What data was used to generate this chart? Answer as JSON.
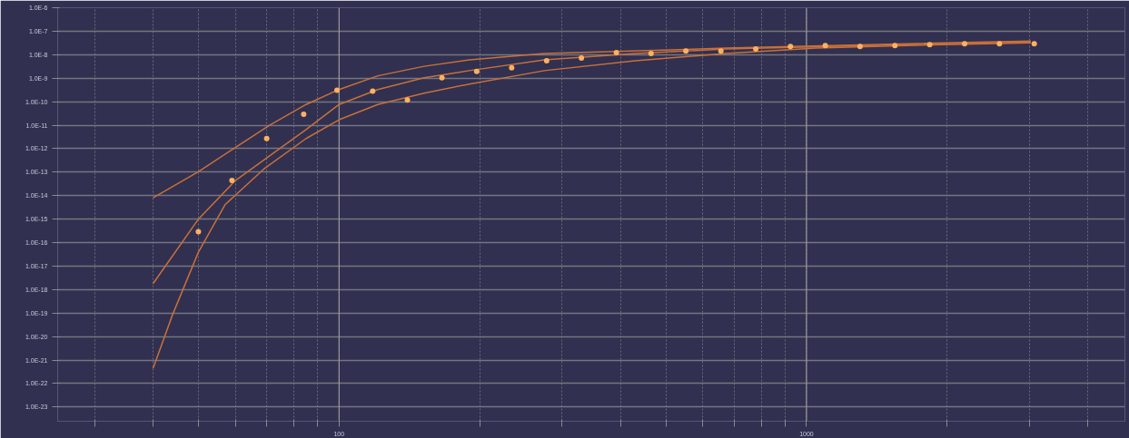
{
  "chart_data": {
    "type": "line",
    "log": "xy",
    "grid": true,
    "marker": "none",
    "xlim": [
      25,
      4800
    ],
    "ylim": [
      2.5e-24,
      1e-06
    ],
    "xticks": [
      {
        "value": 30,
        "label": null
      },
      {
        "value": 40,
        "label": null
      },
      {
        "value": 50,
        "label": null
      },
      {
        "value": 60,
        "label": null
      },
      {
        "value": 70,
        "label": null
      },
      {
        "value": 80,
        "label": null
      },
      {
        "value": 90,
        "label": null
      },
      {
        "value": 100,
        "label": "100"
      },
      {
        "value": 200,
        "label": null
      },
      {
        "value": 300,
        "label": null
      },
      {
        "value": 400,
        "label": null
      },
      {
        "value": 500,
        "label": null
      },
      {
        "value": 600,
        "label": null
      },
      {
        "value": 700,
        "label": null
      },
      {
        "value": 800,
        "label": null
      },
      {
        "value": 900,
        "label": null
      },
      {
        "value": 1000,
        "label": "1000"
      },
      {
        "value": 2000,
        "label": null
      },
      {
        "value": 3000,
        "label": null
      },
      {
        "value": 4000,
        "label": null
      }
    ],
    "yticks": [
      {
        "value": 1e-06,
        "label": "1.0E-6"
      },
      {
        "value": 1e-07,
        "label": "1.0E-7"
      },
      {
        "value": 1e-08,
        "label": "1.0E-8"
      },
      {
        "value": 1e-09,
        "label": "1.0E-9"
      },
      {
        "value": 1e-10,
        "label": "1.0E-10"
      },
      {
        "value": 1e-11,
        "label": "1.0E-11"
      },
      {
        "value": 1e-12,
        "label": "1.0E-12"
      },
      {
        "value": 1e-13,
        "label": "1.0E-13"
      },
      {
        "value": 1e-14,
        "label": "1.0E-14"
      },
      {
        "value": 1e-15,
        "label": "1.0E-15"
      },
      {
        "value": 1e-16,
        "label": "1.0E-16"
      },
      {
        "value": 1e-17,
        "label": "1.0E-17"
      },
      {
        "value": 1e-18,
        "label": "1.0E-18"
      },
      {
        "value": 1e-19,
        "label": "1.0E-19"
      },
      {
        "value": 1e-20,
        "label": "1.0E-20"
      },
      {
        "value": 1e-21,
        "label": "1.0E-21"
      },
      {
        "value": 1e-22,
        "label": "1.0E-22"
      },
      {
        "value": 1e-23,
        "label": "1.0E-23"
      }
    ],
    "series": [
      {
        "type": "scatter",
        "marker": "circle",
        "color": "#ffb060",
        "x": [
          50,
          59,
          70,
          84,
          99,
          118,
          140,
          166,
          197,
          234,
          278,
          330,
          392,
          465,
          552,
          656,
          779,
          924,
          1097,
          1302,
          1546,
          1835,
          2179,
          2587,
          3071
        ],
        "values": [
          2.95e-16,
          4.4e-14,
          2.7e-12,
          2.9e-11,
          3.1e-10,
          2.8e-10,
          1.17e-10,
          1.05e-09,
          1.95e-09,
          2.75e-09,
          5.5e-09,
          7.2e-09,
          1.23e-08,
          1.12e-08,
          1.45e-08,
          1.45e-08,
          1.74e-08,
          2.24e-08,
          2.45e-08,
          2.24e-08,
          2.45e-08,
          2.69e-08,
          2.95e-08,
          2.95e-08,
          2.95e-08
        ]
      },
      {
        "color": "#c8703a",
        "x": [
          40,
          50,
          60,
          71,
          85,
          100,
          121,
          152,
          190,
          275,
          671,
          1643,
          3020
        ],
        "values": [
          8.1e-15,
          1.05e-13,
          1.12e-12,
          1e-11,
          7.6e-11,
          3.3e-10,
          1.26e-09,
          3.2e-09,
          6e-09,
          1.12e-08,
          1.9e-08,
          2.95e-08,
          3.8e-08
        ]
      },
      {
        "color": "#c8703a",
        "x": [
          40,
          50,
          60,
          72,
          85,
          100,
          121,
          152,
          190,
          275,
          430,
          671,
          1643,
          3020
        ],
        "values": [
          1.8e-18,
          1e-15,
          4.4e-14,
          6e-13,
          6.5e-12,
          7.6e-11,
          3.3e-10,
          1.05e-09,
          2.1e-09,
          6e-09,
          1.12e-08,
          1.74e-08,
          2.7e-08,
          3.5e-08
        ]
      },
      {
        "color": "#c8703a",
        "x": [
          40,
          44,
          50,
          57,
          69,
          85,
          100,
          121,
          152,
          190,
          275,
          430,
          671,
          1050,
          1643,
          3020
        ],
        "values": [
          4.4e-22,
          8.3e-20,
          3.9e-17,
          4.1e-15,
          1.35e-13,
          2.7e-12,
          1.7e-11,
          7.6e-11,
          2.3e-10,
          5.6e-10,
          2.1e-09,
          5.5e-09,
          1.12e-08,
          1.9e-08,
          2.45e-08,
          3.2e-08
        ]
      }
    ]
  }
}
